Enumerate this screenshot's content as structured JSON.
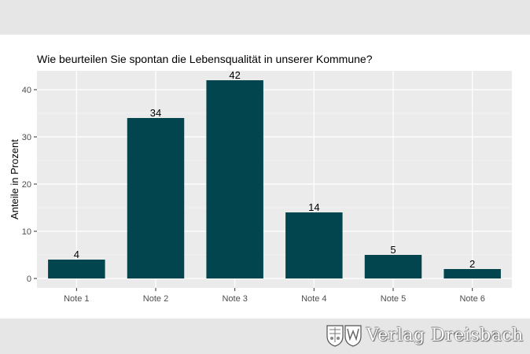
{
  "chart_data": {
    "type": "bar",
    "title": "Wie beurteilen Sie spontan die Lebensqualität in unserer Kommune?",
    "xlabel": "",
    "ylabel": "Anteile in Prozent",
    "categories": [
      "Note 1",
      "Note 2",
      "Note 3",
      "Note 4",
      "Note 5",
      "Note 6"
    ],
    "values": [
      4,
      34,
      42,
      14,
      5,
      2
    ],
    "data_labels": [
      "4",
      "34",
      "42",
      "14",
      "5",
      "2"
    ],
    "ylim": [
      -2,
      44
    ],
    "yticks": [
      0,
      10,
      20,
      30,
      40
    ],
    "grid": true,
    "bar_color": "#02454f",
    "panel_color": "#ebebeb"
  },
  "publisher": {
    "name": "Verlag Dreisbach",
    "icon": "coat-of-arms-icon"
  }
}
